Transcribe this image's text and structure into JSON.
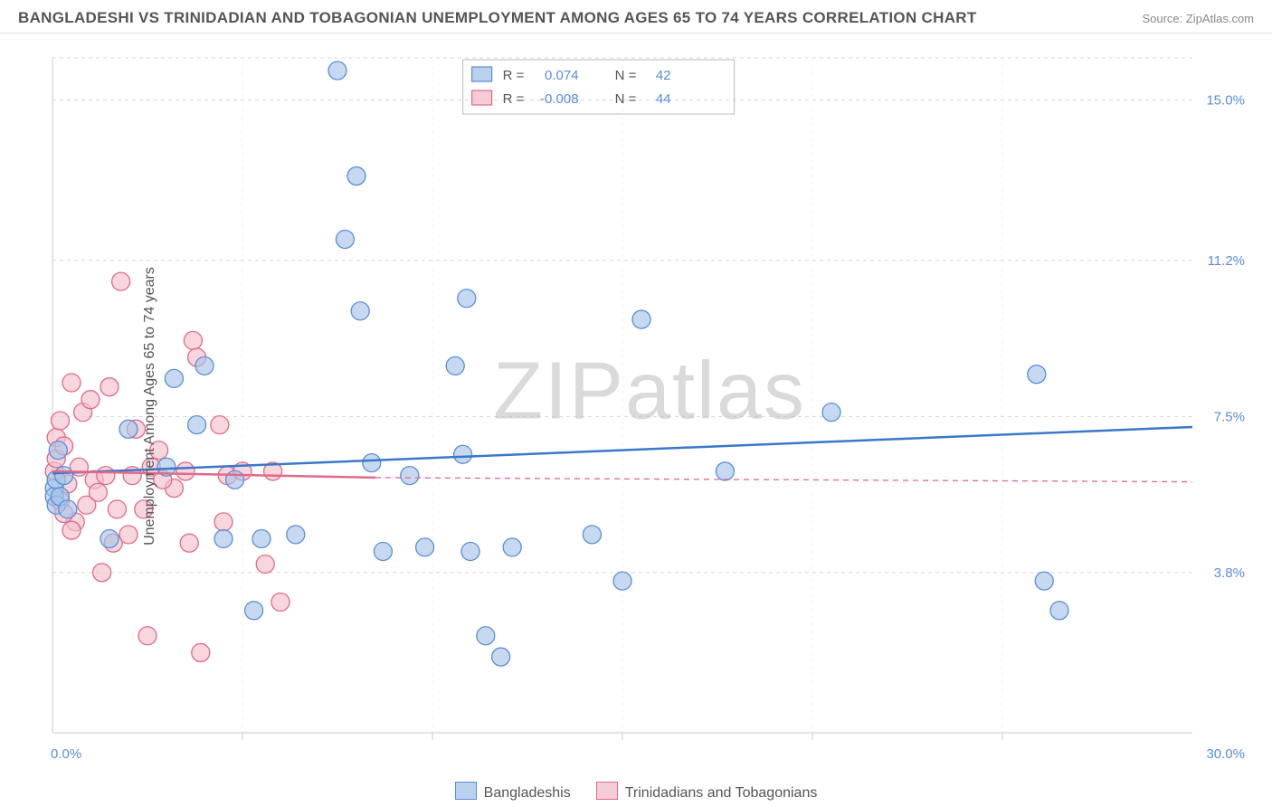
{
  "header": {
    "title": "BANGLADESHI VS TRINIDADIAN AND TOBAGONIAN UNEMPLOYMENT AMONG AGES 65 TO 74 YEARS CORRELATION CHART",
    "source": "Source: ZipAtlas.com"
  },
  "chart": {
    "type": "scatter",
    "ylabel": "Unemployment Among Ages 65 to 74 years",
    "xlim": [
      0,
      30
    ],
    "ylim": [
      0,
      16
    ],
    "xticks": [
      0,
      5,
      10,
      15,
      20,
      25,
      30
    ],
    "yticks": [
      3.8,
      7.5,
      11.2,
      15.0
    ],
    "ytick_labels": [
      "3.8%",
      "7.5%",
      "11.2%",
      "15.0%"
    ],
    "x_start_label": "0.0%",
    "x_end_label": "30.0%",
    "background_color": "#ffffff",
    "grid_color": "#d8d8d8",
    "marker_radius": 10,
    "series": {
      "blue": {
        "name": "Bangladeshis",
        "r_value": "0.074",
        "n_value": "42",
        "color_fill": "#a8c5e8",
        "color_stroke": "#5b8dd6",
        "trend": {
          "x1": 0,
          "y1": 6.15,
          "x2": 30,
          "y2": 7.25
        },
        "points": [
          [
            0.05,
            5.8
          ],
          [
            0.05,
            5.6
          ],
          [
            0.1,
            6.0
          ],
          [
            0.1,
            5.4
          ],
          [
            0.15,
            6.7
          ],
          [
            0.2,
            5.6
          ],
          [
            0.3,
            6.1
          ],
          [
            0.4,
            5.3
          ],
          [
            1.5,
            4.6
          ],
          [
            2.0,
            7.2
          ],
          [
            3.0,
            6.3
          ],
          [
            3.2,
            8.4
          ],
          [
            3.8,
            7.3
          ],
          [
            4.0,
            8.7
          ],
          [
            4.5,
            4.6
          ],
          [
            4.8,
            6.0
          ],
          [
            5.3,
            2.9
          ],
          [
            5.5,
            4.6
          ],
          [
            6.4,
            4.7
          ],
          [
            7.5,
            15.7
          ],
          [
            7.7,
            11.7
          ],
          [
            8.0,
            13.2
          ],
          [
            8.1,
            10.0
          ],
          [
            8.4,
            6.4
          ],
          [
            8.7,
            4.3
          ],
          [
            9.4,
            6.1
          ],
          [
            9.8,
            4.4
          ],
          [
            10.6,
            8.7
          ],
          [
            10.8,
            6.6
          ],
          [
            10.9,
            10.3
          ],
          [
            11.4,
            2.3
          ],
          [
            11.8,
            1.8
          ],
          [
            12.1,
            4.4
          ],
          [
            14.2,
            4.7
          ],
          [
            15.0,
            3.6
          ],
          [
            15.5,
            9.8
          ],
          [
            17.7,
            6.2
          ],
          [
            20.5,
            7.6
          ],
          [
            25.9,
            8.5
          ],
          [
            26.1,
            3.6
          ],
          [
            26.5,
            2.9
          ],
          [
            11.0,
            4.3
          ]
        ]
      },
      "pink": {
        "name": "Trinidadians and Tobagonians",
        "r_value": "-0.008",
        "n_value": "44",
        "color_fill": "#f4c0cd",
        "color_stroke": "#e06a8a",
        "trend_solid": {
          "x1": 0,
          "y1": 6.2,
          "x2": 8.5,
          "y2": 6.05
        },
        "trend_dash": {
          "x1": 8.5,
          "y1": 6.05,
          "x2": 30,
          "y2": 5.95
        },
        "points": [
          [
            0.05,
            6.2
          ],
          [
            0.1,
            6.5
          ],
          [
            0.1,
            7.0
          ],
          [
            0.2,
            7.4
          ],
          [
            0.2,
            5.5
          ],
          [
            0.3,
            6.8
          ],
          [
            0.4,
            5.9
          ],
          [
            0.5,
            8.3
          ],
          [
            0.6,
            5.0
          ],
          [
            0.7,
            6.3
          ],
          [
            0.8,
            7.6
          ],
          [
            0.9,
            5.4
          ],
          [
            1.0,
            7.9
          ],
          [
            1.1,
            6.0
          ],
          [
            1.4,
            6.1
          ],
          [
            1.5,
            8.2
          ],
          [
            1.6,
            4.5
          ],
          [
            1.7,
            5.3
          ],
          [
            1.8,
            10.7
          ],
          [
            2.0,
            4.7
          ],
          [
            2.1,
            6.1
          ],
          [
            2.2,
            7.2
          ],
          [
            2.4,
            5.3
          ],
          [
            2.5,
            2.3
          ],
          [
            2.6,
            6.3
          ],
          [
            2.8,
            6.7
          ],
          [
            3.2,
            5.8
          ],
          [
            3.5,
            6.2
          ],
          [
            3.6,
            4.5
          ],
          [
            3.7,
            9.3
          ],
          [
            3.8,
            8.9
          ],
          [
            3.9,
            1.9
          ],
          [
            4.4,
            7.3
          ],
          [
            4.5,
            5.0
          ],
          [
            4.6,
            6.1
          ],
          [
            5.0,
            6.2
          ],
          [
            5.6,
            4.0
          ],
          [
            5.8,
            6.2
          ],
          [
            6.0,
            3.1
          ],
          [
            0.3,
            5.2
          ],
          [
            0.5,
            4.8
          ],
          [
            1.2,
            5.7
          ],
          [
            1.3,
            3.8
          ],
          [
            2.9,
            6.0
          ]
        ]
      }
    },
    "stats_legend": {
      "r_label": "R =",
      "n_label": "N ="
    },
    "watermark": "ZIPatlas"
  }
}
